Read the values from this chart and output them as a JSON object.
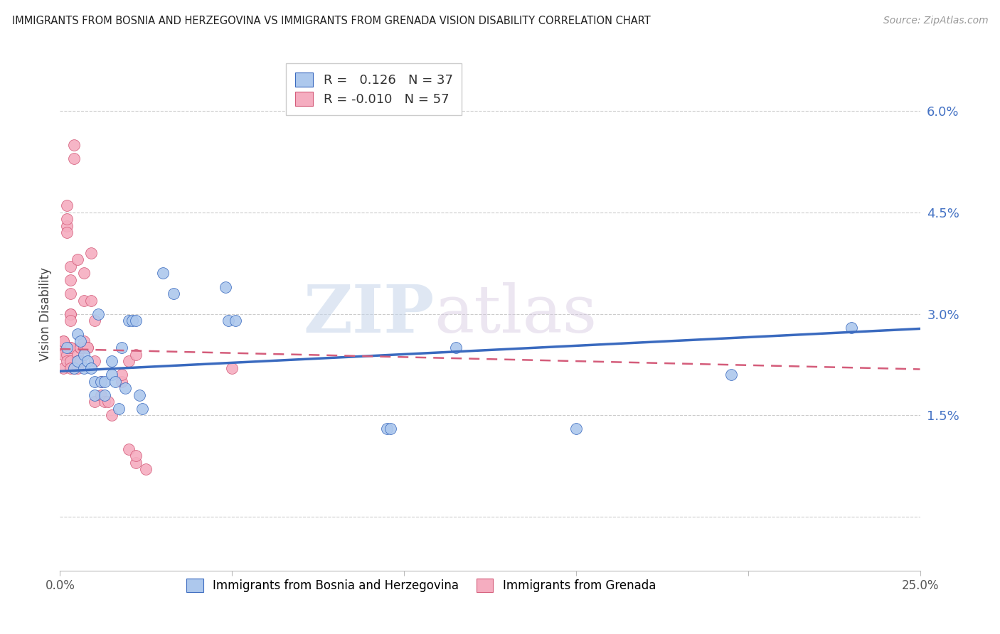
{
  "title": "IMMIGRANTS FROM BOSNIA AND HERZEGOVINA VS IMMIGRANTS FROM GRENADA VISION DISABILITY CORRELATION CHART",
  "source": "Source: ZipAtlas.com",
  "ylabel": "Vision Disability",
  "y_ticks": [
    0.0,
    0.015,
    0.03,
    0.045,
    0.06
  ],
  "y_tick_labels": [
    "",
    "1.5%",
    "3.0%",
    "4.5%",
    "6.0%"
  ],
  "x_min": 0.0,
  "x_max": 0.25,
  "y_min": -0.008,
  "y_max": 0.068,
  "legend_r_blue": " 0.126",
  "legend_n_blue": "37",
  "legend_r_pink": "-0.010",
  "legend_n_pink": "57",
  "blue_color": "#adc8ed",
  "pink_color": "#f5adc0",
  "line_blue_color": "#3a6abf",
  "line_pink_color": "#d45c7a",
  "blue_scatter": [
    [
      0.002,
      0.025
    ],
    [
      0.004,
      0.022
    ],
    [
      0.005,
      0.027
    ],
    [
      0.005,
      0.023
    ],
    [
      0.006,
      0.026
    ],
    [
      0.007,
      0.024
    ],
    [
      0.007,
      0.022
    ],
    [
      0.008,
      0.023
    ],
    [
      0.009,
      0.022
    ],
    [
      0.01,
      0.018
    ],
    [
      0.01,
      0.02
    ],
    [
      0.011,
      0.03
    ],
    [
      0.012,
      0.02
    ],
    [
      0.013,
      0.02
    ],
    [
      0.013,
      0.018
    ],
    [
      0.015,
      0.023
    ],
    [
      0.015,
      0.021
    ],
    [
      0.016,
      0.02
    ],
    [
      0.017,
      0.016
    ],
    [
      0.018,
      0.025
    ],
    [
      0.019,
      0.019
    ],
    [
      0.02,
      0.029
    ],
    [
      0.021,
      0.029
    ],
    [
      0.022,
      0.029
    ],
    [
      0.023,
      0.018
    ],
    [
      0.024,
      0.016
    ],
    [
      0.03,
      0.036
    ],
    [
      0.033,
      0.033
    ],
    [
      0.048,
      0.034
    ],
    [
      0.049,
      0.029
    ],
    [
      0.051,
      0.029
    ],
    [
      0.095,
      0.013
    ],
    [
      0.096,
      0.013
    ],
    [
      0.115,
      0.025
    ],
    [
      0.15,
      0.013
    ],
    [
      0.195,
      0.021
    ],
    [
      0.23,
      0.028
    ]
  ],
  "pink_scatter": [
    [
      0.001,
      0.025
    ],
    [
      0.001,
      0.024
    ],
    [
      0.001,
      0.022
    ],
    [
      0.001,
      0.026
    ],
    [
      0.001,
      0.026
    ],
    [
      0.002,
      0.024
    ],
    [
      0.002,
      0.023
    ],
    [
      0.002,
      0.043
    ],
    [
      0.002,
      0.044
    ],
    [
      0.002,
      0.046
    ],
    [
      0.002,
      0.042
    ],
    [
      0.003,
      0.037
    ],
    [
      0.003,
      0.035
    ],
    [
      0.003,
      0.03
    ],
    [
      0.003,
      0.03
    ],
    [
      0.003,
      0.029
    ],
    [
      0.003,
      0.025
    ],
    [
      0.003,
      0.025
    ],
    [
      0.003,
      0.033
    ],
    [
      0.003,
      0.023
    ],
    [
      0.003,
      0.022
    ],
    [
      0.004,
      0.022
    ],
    [
      0.004,
      0.053
    ],
    [
      0.004,
      0.055
    ],
    [
      0.005,
      0.038
    ],
    [
      0.005,
      0.024
    ],
    [
      0.005,
      0.023
    ],
    [
      0.005,
      0.022
    ],
    [
      0.006,
      0.025
    ],
    [
      0.006,
      0.025
    ],
    [
      0.006,
      0.025
    ],
    [
      0.006,
      0.023
    ],
    [
      0.007,
      0.036
    ],
    [
      0.007,
      0.025
    ],
    [
      0.007,
      0.026
    ],
    [
      0.007,
      0.032
    ],
    [
      0.008,
      0.025
    ],
    [
      0.008,
      0.025
    ],
    [
      0.009,
      0.039
    ],
    [
      0.009,
      0.032
    ],
    [
      0.01,
      0.017
    ],
    [
      0.01,
      0.029
    ],
    [
      0.01,
      0.023
    ],
    [
      0.012,
      0.02
    ],
    [
      0.012,
      0.018
    ],
    [
      0.013,
      0.017
    ],
    [
      0.014,
      0.017
    ],
    [
      0.015,
      0.015
    ],
    [
      0.018,
      0.02
    ],
    [
      0.018,
      0.021
    ],
    [
      0.02,
      0.023
    ],
    [
      0.02,
      0.01
    ],
    [
      0.022,
      0.008
    ],
    [
      0.022,
      0.009
    ],
    [
      0.022,
      0.024
    ],
    [
      0.025,
      0.007
    ],
    [
      0.05,
      0.022
    ]
  ],
  "blue_line_x": [
    0.0,
    0.25
  ],
  "blue_line_y_start": 0.0215,
  "blue_line_y_end": 0.0278,
  "pink_line_x": [
    0.0,
    0.25
  ],
  "pink_line_y_start": 0.0248,
  "pink_line_y_end": 0.0218,
  "watermark_zip": "ZIP",
  "watermark_atlas": "atlas",
  "legend_label_blue": "Immigrants from Bosnia and Herzegovina",
  "legend_label_pink": "Immigrants from Grenada"
}
